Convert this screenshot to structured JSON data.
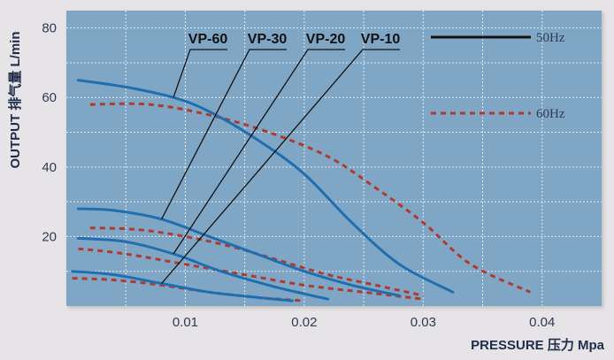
{
  "chart_data": {
    "type": "line",
    "title": "",
    "xlabel": "PRESSURE 压力 Mpa",
    "ylabel": "OUTPUT 排气量 L/min",
    "xlim": [
      0,
      0.045
    ],
    "ylim": [
      0,
      85
    ],
    "x_ticks": [
      "0.01",
      "0.02",
      "0.03",
      "0.04"
    ],
    "y_ticks": [
      "20",
      "40",
      "60",
      "80"
    ],
    "grid": true,
    "legend_position": "top-right",
    "legend": [
      {
        "label": "50Hz",
        "style": "solid",
        "color": "#1f6fb0"
      },
      {
        "label": "60Hz",
        "style": "dashed",
        "color": "#b03a2e"
      }
    ],
    "series_labels": [
      "VP-60",
      "VP-30",
      "VP-20",
      "VP-10"
    ],
    "series": [
      {
        "name": "VP-60",
        "frequency": "50Hz",
        "x": [
          0.001,
          0.005,
          0.009,
          0.012,
          0.016,
          0.02,
          0.024,
          0.028,
          0.0325
        ],
        "y": [
          65,
          63,
          60,
          56,
          48,
          38,
          24,
          12,
          4
        ]
      },
      {
        "name": "VP-60",
        "frequency": "60Hz",
        "x": [
          0.002,
          0.007,
          0.012,
          0.017,
          0.022,
          0.026,
          0.03,
          0.034,
          0.039
        ],
        "y": [
          58,
          58,
          55,
          50,
          43,
          34,
          24,
          12,
          4
        ]
      },
      {
        "name": "VP-30",
        "frequency": "50Hz",
        "x": [
          0.001,
          0.004,
          0.008,
          0.012,
          0.016,
          0.02,
          0.024,
          0.028
        ],
        "y": [
          28,
          27.5,
          25,
          20,
          15,
          10,
          6,
          3
        ]
      },
      {
        "name": "VP-30",
        "frequency": "60Hz",
        "x": [
          0.002,
          0.006,
          0.01,
          0.014,
          0.018,
          0.022,
          0.026,
          0.03
        ],
        "y": [
          22.5,
          22,
          20,
          17,
          13,
          9,
          6,
          3
        ]
      },
      {
        "name": "VP-20",
        "frequency": "50Hz",
        "x": [
          0.001,
          0.005,
          0.009,
          0.013,
          0.017,
          0.02,
          0.022
        ],
        "y": [
          19.5,
          18.5,
          15,
          10,
          6,
          3.5,
          2
        ]
      },
      {
        "name": "VP-20",
        "frequency": "60Hz",
        "x": [
          0.001,
          0.005,
          0.01,
          0.015,
          0.02,
          0.025,
          0.03
        ],
        "y": [
          16.5,
          15,
          12,
          9,
          6,
          4,
          2
        ]
      },
      {
        "name": "VP-10",
        "frequency": "50Hz",
        "x": [
          0.0005,
          0.004,
          0.008,
          0.012,
          0.016,
          0.019
        ],
        "y": [
          10,
          9,
          6.5,
          4,
          2.5,
          1.5
        ]
      },
      {
        "name": "VP-10",
        "frequency": "60Hz",
        "x": [
          0.0005,
          0.004,
          0.008,
          0.012,
          0.016,
          0.02
        ],
        "y": [
          8,
          7.5,
          6,
          4,
          2.5,
          1.5
        ]
      }
    ]
  }
}
